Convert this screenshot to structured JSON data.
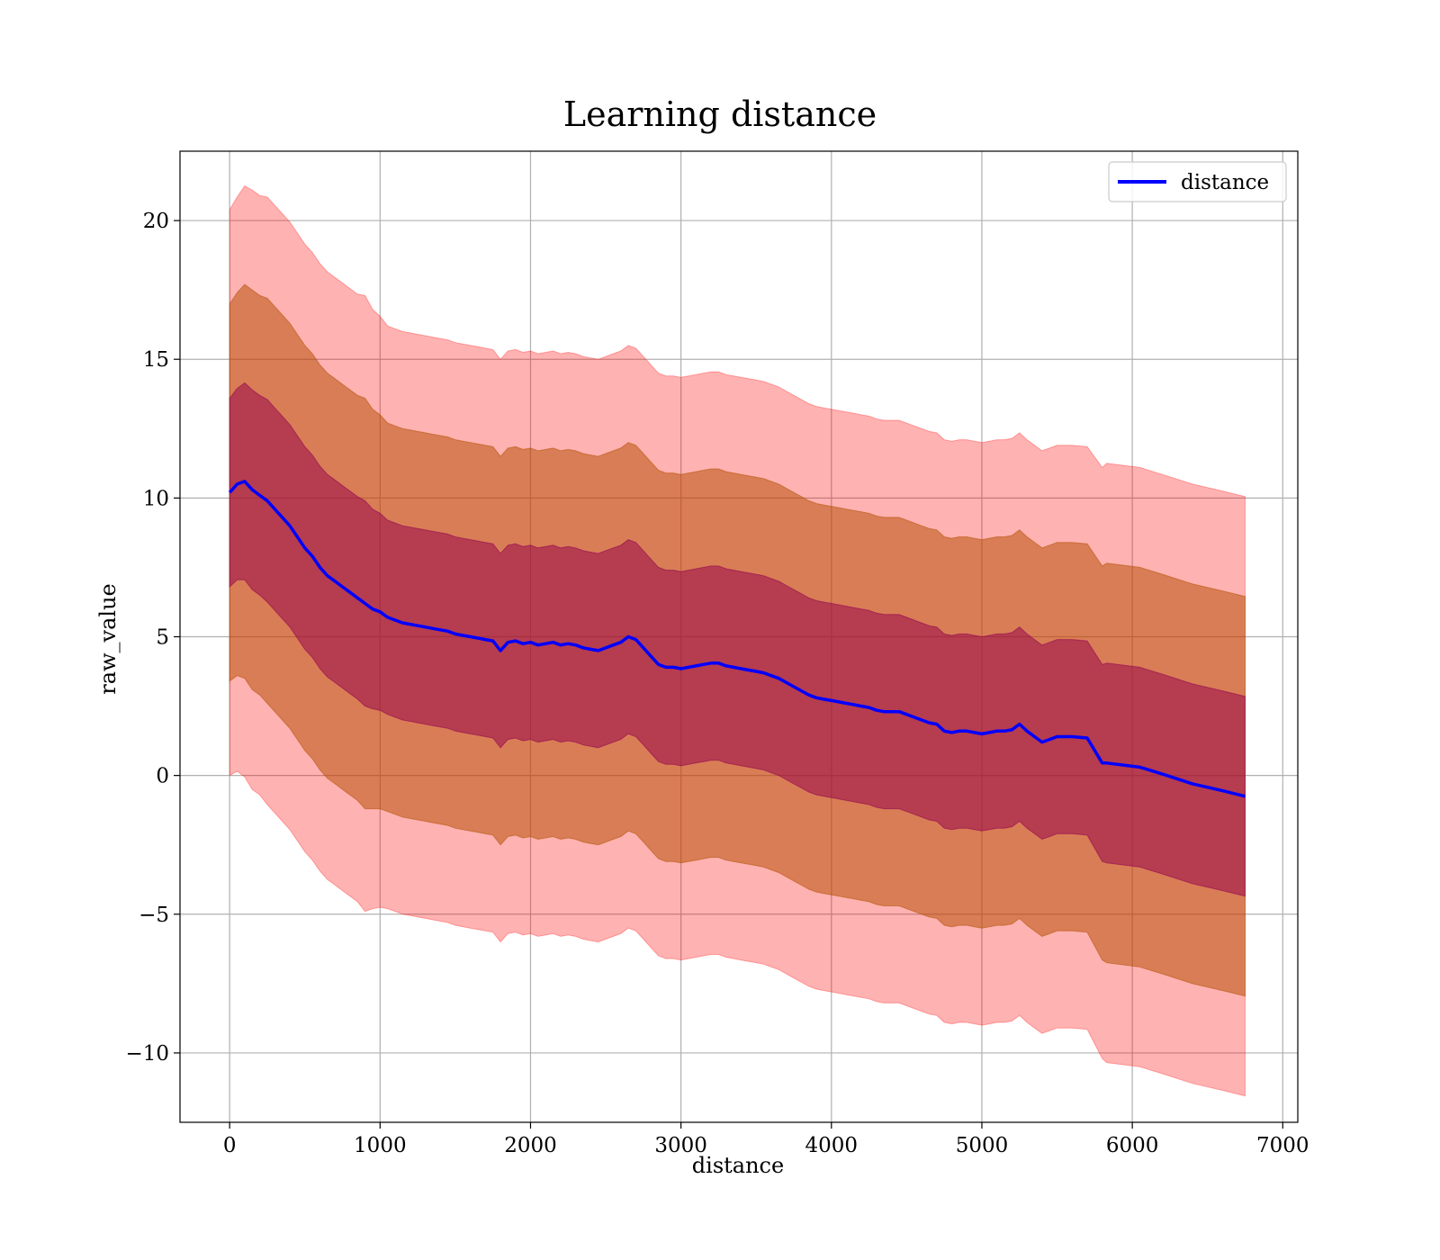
{
  "chart_data": {
    "type": "line",
    "title": "Learning distance",
    "xlabel": "distance",
    "ylabel": "raw_value",
    "xlim": [
      -330,
      7100
    ],
    "ylim": [
      -12.5,
      22.5
    ],
    "xticks": [
      0,
      1000,
      2000,
      3000,
      4000,
      5000,
      6000,
      7000
    ],
    "xtick_labels": [
      "0",
      "1000",
      "2000",
      "3000",
      "4000",
      "5000",
      "6000",
      "7000"
    ],
    "yticks": [
      -10,
      -5,
      0,
      5,
      10,
      15,
      20
    ],
    "ytick_labels": [
      "−10",
      "−5",
      "0",
      "5",
      "10",
      "15",
      "20"
    ],
    "grid": true,
    "legend": {
      "position": "top-right",
      "entries": [
        "distance"
      ]
    },
    "colors": {
      "line": "#0000ff",
      "band": "#ff0000",
      "band_1sigma": "#4b0082",
      "band_2sigma": "#808000"
    },
    "band_std_multipliers": [
      1,
      2,
      3
    ],
    "series": [
      {
        "name": "distance",
        "x": [
          0,
          50,
          100,
          150,
          200,
          250,
          300,
          350,
          400,
          450,
          500,
          550,
          600,
          650,
          700,
          750,
          800,
          850,
          900,
          950,
          1000,
          1050,
          1100,
          1150,
          1200,
          1250,
          1300,
          1350,
          1400,
          1450,
          1500,
          1550,
          1600,
          1650,
          1700,
          1750,
          1800,
          1850,
          1900,
          1950,
          2000,
          2050,
          2100,
          2150,
          2200,
          2250,
          2300,
          2350,
          2400,
          2450,
          2500,
          2550,
          2600,
          2650,
          2700,
          2750,
          2800,
          2850,
          2900,
          2950,
          3000,
          3050,
          3100,
          3150,
          3200,
          3250,
          3300,
          3350,
          3400,
          3450,
          3500,
          3550,
          3600,
          3650,
          3700,
          3750,
          3800,
          3850,
          3900,
          3950,
          4000,
          4050,
          4100,
          4150,
          4200,
          4250,
          4300,
          4350,
          4400,
          4450,
          4500,
          4550,
          4600,
          4650,
          4700,
          4750,
          4800,
          4850,
          4900,
          4950,
          5000,
          5050,
          5100,
          5150,
          5200,
          5250,
          5300,
          5350,
          5400,
          5450,
          5500,
          5550,
          5600,
          5700,
          5800,
          5830,
          6050,
          6200,
          6400,
          6600,
          6750
        ],
        "values": [
          10.2,
          10.5,
          10.6,
          10.3,
          10.1,
          9.9,
          9.6,
          9.3,
          9.0,
          8.6,
          8.2,
          7.9,
          7.5,
          7.2,
          7.0,
          6.8,
          6.6,
          6.4,
          6.2,
          6.0,
          5.9,
          5.7,
          5.6,
          5.5,
          5.45,
          5.4,
          5.35,
          5.3,
          5.25,
          5.2,
          5.1,
          5.05,
          5.0,
          4.95,
          4.9,
          4.85,
          4.5,
          4.8,
          4.85,
          4.75,
          4.8,
          4.7,
          4.75,
          4.8,
          4.7,
          4.75,
          4.7,
          4.6,
          4.55,
          4.5,
          4.6,
          4.7,
          4.8,
          5.0,
          4.9,
          4.6,
          4.3,
          4.0,
          3.9,
          3.9,
          3.85,
          3.9,
          3.95,
          4.0,
          4.05,
          4.05,
          3.95,
          3.9,
          3.85,
          3.8,
          3.75,
          3.7,
          3.6,
          3.5,
          3.35,
          3.2,
          3.05,
          2.9,
          2.8,
          2.75,
          2.7,
          2.65,
          2.6,
          2.55,
          2.5,
          2.45,
          2.35,
          2.3,
          2.3,
          2.3,
          2.2,
          2.1,
          2.0,
          1.9,
          1.85,
          1.6,
          1.55,
          1.6,
          1.6,
          1.55,
          1.5,
          1.55,
          1.6,
          1.6,
          1.65,
          1.85,
          1.6,
          1.4,
          1.2,
          1.3,
          1.4,
          1.4,
          1.4,
          1.35,
          0.45,
          0.45,
          0.3,
          0.05,
          -0.3,
          -0.55,
          -0.75
        ]
      }
    ],
    "std": [
      3.4,
      3.45,
      3.55,
      3.6,
      3.6,
      3.65,
      3.65,
      3.65,
      3.65,
      3.65,
      3.65,
      3.65,
      3.65,
      3.65,
      3.65,
      3.65,
      3.65,
      3.65,
      3.7,
      3.6,
      3.55,
      3.5,
      3.5,
      3.5,
      3.5,
      3.5,
      3.5,
      3.5,
      3.5,
      3.5,
      3.5,
      3.5,
      3.5,
      3.5,
      3.5,
      3.5,
      3.5,
      3.5,
      3.5,
      3.5,
      3.5,
      3.5,
      3.5,
      3.5,
      3.5,
      3.5,
      3.5,
      3.5,
      3.5,
      3.5,
      3.5,
      3.5,
      3.5,
      3.5,
      3.5,
      3.5,
      3.5,
      3.5,
      3.5,
      3.5,
      3.5,
      3.5,
      3.5,
      3.5,
      3.5,
      3.5,
      3.5,
      3.5,
      3.5,
      3.5,
      3.5,
      3.5,
      3.5,
      3.5,
      3.5,
      3.5,
      3.5,
      3.5,
      3.5,
      3.5,
      3.5,
      3.5,
      3.5,
      3.5,
      3.5,
      3.5,
      3.5,
      3.5,
      3.5,
      3.5,
      3.5,
      3.5,
      3.5,
      3.5,
      3.5,
      3.5,
      3.5,
      3.5,
      3.5,
      3.5,
      3.5,
      3.5,
      3.5,
      3.5,
      3.5,
      3.5,
      3.5,
      3.5,
      3.5,
      3.5,
      3.5,
      3.5,
      3.5,
      3.5,
      3.55,
      3.6,
      3.6,
      3.6,
      3.6,
      3.6,
      3.6
    ]
  }
}
